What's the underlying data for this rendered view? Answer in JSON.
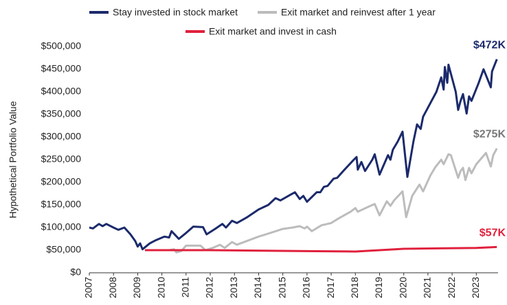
{
  "chart_data": {
    "type": "line",
    "ylabel": "Hypothetical Portfolio Value",
    "xlim": [
      2007,
      2023.9
    ],
    "xticks": [
      2007,
      2008,
      2009,
      2010,
      2011,
      2012,
      2013,
      2014,
      2015,
      2016,
      2017,
      2018,
      2019,
      2020,
      2021,
      2022,
      2023
    ],
    "ylim": [
      0,
      500000
    ],
    "yticks": [
      {
        "value": 0,
        "label": "$0"
      },
      {
        "value": 50000,
        "label": "$50,000"
      },
      {
        "value": 100000,
        "label": "$100,000"
      },
      {
        "value": 150000,
        "label": "$150,000"
      },
      {
        "value": 200000,
        "label": "$200,000"
      },
      {
        "value": 250000,
        "label": "$250,000"
      },
      {
        "value": 300000,
        "label": "$300,000"
      },
      {
        "value": 350000,
        "label": "$350,000"
      },
      {
        "value": 400000,
        "label": "$400,000"
      },
      {
        "value": 450000,
        "label": "$450,000"
      },
      {
        "value": 500000,
        "label": "$500,000"
      }
    ],
    "grid": false,
    "legend": "top",
    "series": [
      {
        "name": "Stay invested in stock market",
        "color": "#1b2a6b",
        "x": [
          2007.0,
          2007.15,
          2007.4,
          2007.55,
          2007.7,
          2008.0,
          2008.2,
          2008.45,
          2008.7,
          2008.9,
          2009.0,
          2009.1,
          2009.2,
          2009.5,
          2009.75,
          2010.1,
          2010.3,
          2010.4,
          2010.7,
          2011.0,
          2011.3,
          2011.7,
          2011.85,
          2012.2,
          2012.5,
          2012.65,
          2012.9,
          2013.1,
          2013.5,
          2014.0,
          2014.4,
          2014.7,
          2014.9,
          2015.3,
          2015.5,
          2015.7,
          2015.85,
          2016.0,
          2016.4,
          2016.55,
          2016.7,
          2016.85,
          2017.1,
          2017.25,
          2017.5,
          2017.9,
          2018.05,
          2018.1,
          2018.25,
          2018.4,
          2018.7,
          2018.8,
          2019.0,
          2019.35,
          2019.45,
          2019.55,
          2019.75,
          2019.95,
          2020.15,
          2020.4,
          2020.55,
          2020.7,
          2020.8,
          2021.15,
          2021.35,
          2021.55,
          2021.65,
          2021.7,
          2021.8,
          2021.85,
          2021.95,
          2022.15,
          2022.25,
          2022.35,
          2022.45,
          2022.6,
          2022.7,
          2022.8,
          2023.1,
          2023.3,
          2023.6,
          2023.65,
          2023.85
        ],
        "values": [
          100000,
          98000,
          108000,
          103000,
          108000,
          100000,
          95000,
          100000,
          85000,
          70000,
          58000,
          65000,
          52000,
          65000,
          72000,
          80000,
          78000,
          92000,
          75000,
          88000,
          102000,
          101000,
          85000,
          97000,
          108000,
          100000,
          115000,
          110000,
          122000,
          140000,
          150000,
          165000,
          160000,
          172000,
          178000,
          163000,
          170000,
          157000,
          178000,
          178000,
          190000,
          192000,
          208000,
          210000,
          225000,
          248000,
          256000,
          228000,
          245000,
          225000,
          250000,
          262000,
          217000,
          260000,
          250000,
          272000,
          290000,
          312000,
          212000,
          290000,
          328000,
          318000,
          345000,
          380000,
          400000,
          432000,
          405000,
          455000,
          420000,
          460000,
          440000,
          400000,
          360000,
          380000,
          395000,
          352000,
          390000,
          380000,
          420000,
          450000,
          410000,
          445000,
          472000
        ]
      },
      {
        "name": "Exit market and reinvest after 1 year",
        "color": "#bcbcbc",
        "x": [
          2009.3,
          2010.3,
          2010.5,
          2010.6,
          2010.8,
          2011.0,
          2011.6,
          2011.8,
          2012.1,
          2012.4,
          2012.6,
          2012.9,
          2013.1,
          2013.5,
          2014.0,
          2014.6,
          2015.0,
          2015.4,
          2015.7,
          2015.9,
          2016.0,
          2016.2,
          2016.6,
          2017.0,
          2017.3,
          2017.8,
          2018.0,
          2018.1,
          2018.5,
          2018.8,
          2019.0,
          2019.3,
          2019.45,
          2019.6,
          2019.95,
          2020.1,
          2020.35,
          2020.65,
          2020.8,
          2021.1,
          2021.3,
          2021.55,
          2021.65,
          2021.85,
          2021.95,
          2022.1,
          2022.25,
          2022.35,
          2022.45,
          2022.55,
          2022.7,
          2022.8,
          2023.0,
          2023.4,
          2023.6,
          2023.7,
          2023.85
        ],
        "values": [
          50000,
          50000,
          52000,
          45000,
          48000,
          60000,
          60000,
          50000,
          55000,
          62000,
          55000,
          68000,
          62000,
          70000,
          80000,
          90000,
          97000,
          100000,
          103000,
          98000,
          102000,
          92000,
          105000,
          110000,
          120000,
          135000,
          143000,
          135000,
          145000,
          152000,
          127000,
          158000,
          148000,
          160000,
          180000,
          123000,
          170000,
          195000,
          180000,
          215000,
          233000,
          250000,
          240000,
          262000,
          260000,
          235000,
          210000,
          225000,
          232000,
          205000,
          232000,
          220000,
          240000,
          265000,
          235000,
          260000,
          275000
        ]
      },
      {
        "name": "Exit market and invest in cash",
        "color": "#e0203c",
        "x": [
          2009.3,
          2012.0,
          2016.0,
          2018.0,
          2020.0,
          2023.0,
          2023.85
        ],
        "values": [
          50000,
          50000,
          48000,
          47000,
          53000,
          55000,
          57000
        ]
      }
    ],
    "annotations": [
      {
        "text": "$472K",
        "color": "#1b2a6b"
      },
      {
        "text": "$275K",
        "color": "#777777"
      },
      {
        "text": "$57K",
        "color": "#e0203c"
      }
    ]
  }
}
